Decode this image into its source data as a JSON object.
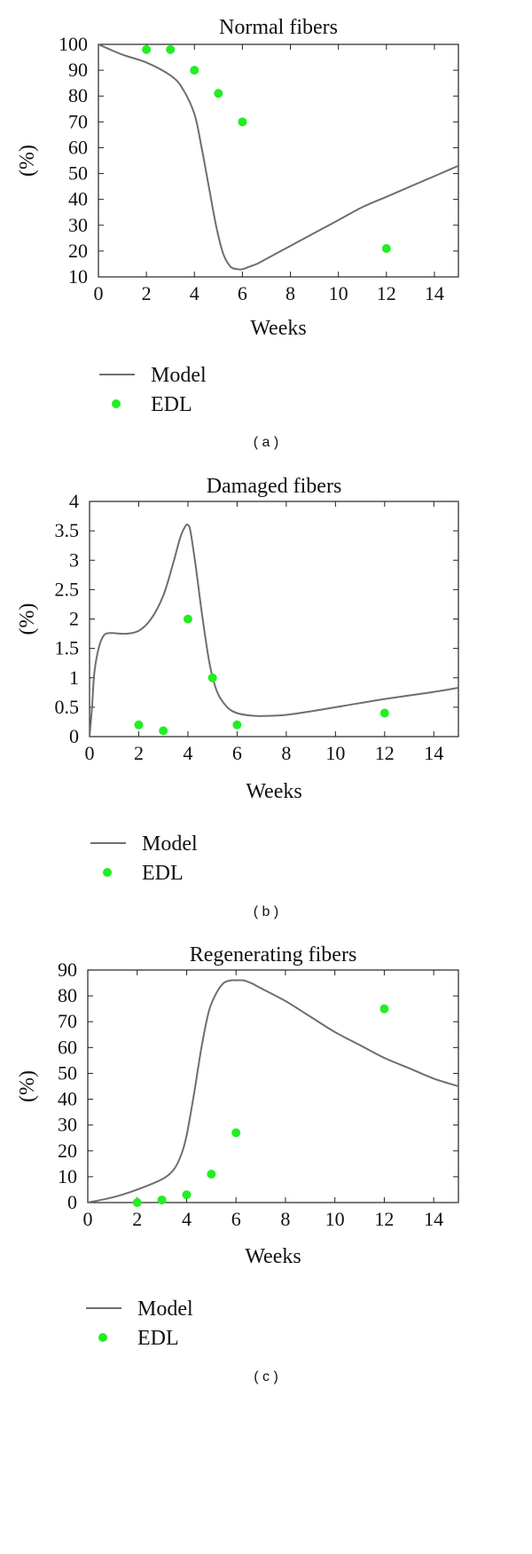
{
  "colors": {
    "model": "#6e6e6e",
    "edl": "#22ee22",
    "axis": "#222222"
  },
  "chart_data": [
    {
      "type": "line",
      "title": "Normal fibers",
      "xlabel": "Weeks",
      "ylabel": "(%)",
      "caption": "( a )",
      "xlim": [
        0,
        15
      ],
      "ylim": [
        10,
        100
      ],
      "xticks": [
        0,
        2,
        4,
        6,
        8,
        10,
        12,
        14
      ],
      "yticks": [
        10,
        20,
        30,
        40,
        50,
        60,
        70,
        80,
        90,
        100
      ],
      "legend": [
        "Model",
        "EDL"
      ],
      "series": [
        {
          "name": "Model",
          "kind": "line",
          "x": [
            0,
            1,
            2,
            3,
            3.5,
            4,
            4.3,
            4.6,
            4.9,
            5.2,
            5.5,
            5.8,
            6,
            6.3,
            6.6,
            7,
            8,
            9,
            10,
            11,
            12,
            13,
            14,
            15
          ],
          "y": [
            100,
            96,
            93,
            88,
            83,
            73,
            60,
            45,
            30,
            19,
            14,
            13,
            13,
            14,
            15,
            17,
            22,
            27,
            32,
            37,
            41,
            45,
            49,
            53
          ]
        },
        {
          "name": "EDL",
          "kind": "scatter",
          "x": [
            2,
            3,
            4,
            5,
            6,
            12
          ],
          "y": [
            98,
            98,
            90,
            81,
            70,
            21
          ]
        }
      ]
    },
    {
      "type": "line",
      "title": "Damaged fibers",
      "xlabel": "Weeks",
      "ylabel": "(%)",
      "caption": "( b )",
      "xlim": [
        0,
        15
      ],
      "ylim": [
        0,
        4
      ],
      "xticks": [
        0,
        2,
        4,
        6,
        8,
        10,
        12,
        14
      ],
      "yticks": [
        0,
        0.5,
        1,
        1.5,
        2,
        2.5,
        3,
        3.5,
        4
      ],
      "legend": [
        "Model",
        "EDL"
      ],
      "series": [
        {
          "name": "Model",
          "kind": "line",
          "x": [
            0,
            0.1,
            0.2,
            0.4,
            0.6,
            0.8,
            1,
            1.5,
            2,
            2.5,
            3,
            3.4,
            3.7,
            3.9,
            4,
            4.1,
            4.3,
            4.6,
            4.9,
            5.2,
            5.6,
            6,
            6.5,
            7,
            8,
            9,
            10,
            11,
            12,
            13,
            14,
            15
          ],
          "y": [
            0,
            0.5,
            1.1,
            1.55,
            1.73,
            1.76,
            1.76,
            1.75,
            1.8,
            2.0,
            2.4,
            2.95,
            3.4,
            3.58,
            3.6,
            3.5,
            2.95,
            2.0,
            1.2,
            0.75,
            0.5,
            0.4,
            0.36,
            0.35,
            0.37,
            0.43,
            0.5,
            0.57,
            0.64,
            0.7,
            0.76,
            0.83
          ]
        },
        {
          "name": "EDL",
          "kind": "scatter",
          "x": [
            2,
            3,
            4,
            5,
            6,
            12
          ],
          "y": [
            0.2,
            0.1,
            2.0,
            1.0,
            0.2,
            0.4
          ]
        }
      ]
    },
    {
      "type": "line",
      "title": "Regenerating fibers",
      "xlabel": "Weeks",
      "ylabel": "(%)",
      "caption": "( c )",
      "xlim": [
        0,
        15
      ],
      "ylim": [
        0,
        90
      ],
      "xticks": [
        0,
        2,
        4,
        6,
        8,
        10,
        12,
        14
      ],
      "yticks": [
        0,
        10,
        20,
        30,
        40,
        50,
        60,
        70,
        80,
        90
      ],
      "legend": [
        "Model",
        "EDL"
      ],
      "series": [
        {
          "name": "Model",
          "kind": "line",
          "x": [
            0,
            1,
            2,
            3,
            3.5,
            3.8,
            4,
            4.3,
            4.6,
            4.9,
            5.2,
            5.5,
            5.8,
            6,
            6.3,
            6.6,
            7,
            8,
            9,
            10,
            11,
            12,
            13,
            14,
            15
          ],
          "y": [
            0,
            2,
            5,
            9,
            13,
            19,
            26,
            42,
            60,
            74,
            81,
            85,
            86,
            86,
            86,
            85,
            83,
            78,
            72,
            66,
            61,
            56,
            52,
            48,
            45
          ]
        },
        {
          "name": "EDL",
          "kind": "scatter",
          "x": [
            2,
            3,
            4,
            5,
            6,
            12
          ],
          "y": [
            0,
            1,
            3,
            11,
            27,
            75
          ]
        }
      ]
    }
  ]
}
